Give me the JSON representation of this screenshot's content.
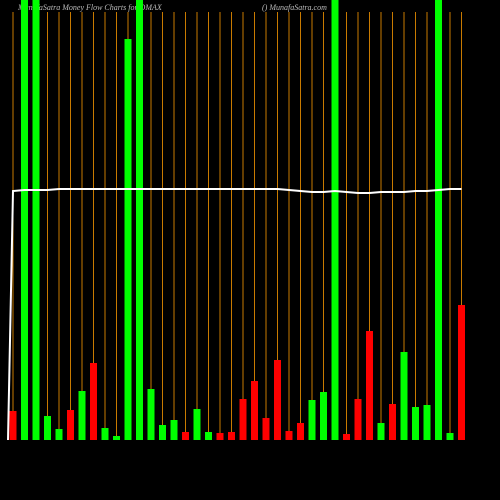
{
  "chart_data": {
    "type": "bar",
    "title": "MunafaSatra  Money Flow  Charts for DMAX",
    "subtitle": "() MunafaSatra.com",
    "categories": [
      null,
      null,
      null,
      null,
      null,
      null,
      null,
      null,
      null,
      null,
      null,
      null,
      null,
      null,
      null,
      null,
      null,
      null,
      null,
      null,
      null,
      null,
      null,
      null,
      null,
      null,
      null,
      null,
      null,
      null,
      null,
      null,
      null,
      null,
      null,
      null,
      null,
      null,
      null,
      null
    ],
    "values": [
      29,
      440,
      440,
      24,
      11,
      30,
      49,
      77,
      12,
      4,
      401,
      440,
      51,
      15,
      20,
      8,
      31,
      8,
      7,
      8,
      41,
      59,
      22,
      80,
      9,
      17,
      40,
      48,
      440,
      6,
      41,
      109,
      17,
      36,
      88,
      33,
      35,
      440,
      7,
      135
    ],
    "bar_colors": [
      "#ff0000",
      "#00ff00",
      "#00ff00",
      "#00ff00",
      "#00ff00",
      "#ff0000",
      "#00ff00",
      "#ff0000",
      "#00ff00",
      "#00ff00",
      "#00ff00",
      "#00ff00",
      "#00ff00",
      "#00ff00",
      "#00ff00",
      "#ff0000",
      "#00ff00",
      "#00ff00",
      "#ff0000",
      "#ff0000",
      "#ff0000",
      "#ff0000",
      "#ff0000",
      "#ff0000",
      "#ff0000",
      "#ff0000",
      "#00ff00",
      "#00ff00",
      "#00ff00",
      "#ff0000",
      "#ff0000",
      "#ff0000",
      "#00ff00",
      "#ff0000",
      "#00ff00",
      "#00ff00",
      "#00ff00",
      "#00ff00",
      "#00ff00",
      "#ff0000"
    ],
    "line": {
      "color": "#ffffff",
      "values": [
        249,
        250,
        250,
        250,
        251,
        251,
        251,
        251,
        251,
        251,
        251,
        251,
        251,
        251,
        251,
        251,
        251,
        251,
        251,
        251,
        251,
        251,
        251,
        251,
        250,
        249,
        248,
        248,
        249,
        248,
        247,
        247,
        248,
        248,
        248,
        249,
        249,
        250,
        251,
        251
      ]
    },
    "ylim": [
      0,
      440
    ],
    "grid_color": "#c87a00"
  }
}
